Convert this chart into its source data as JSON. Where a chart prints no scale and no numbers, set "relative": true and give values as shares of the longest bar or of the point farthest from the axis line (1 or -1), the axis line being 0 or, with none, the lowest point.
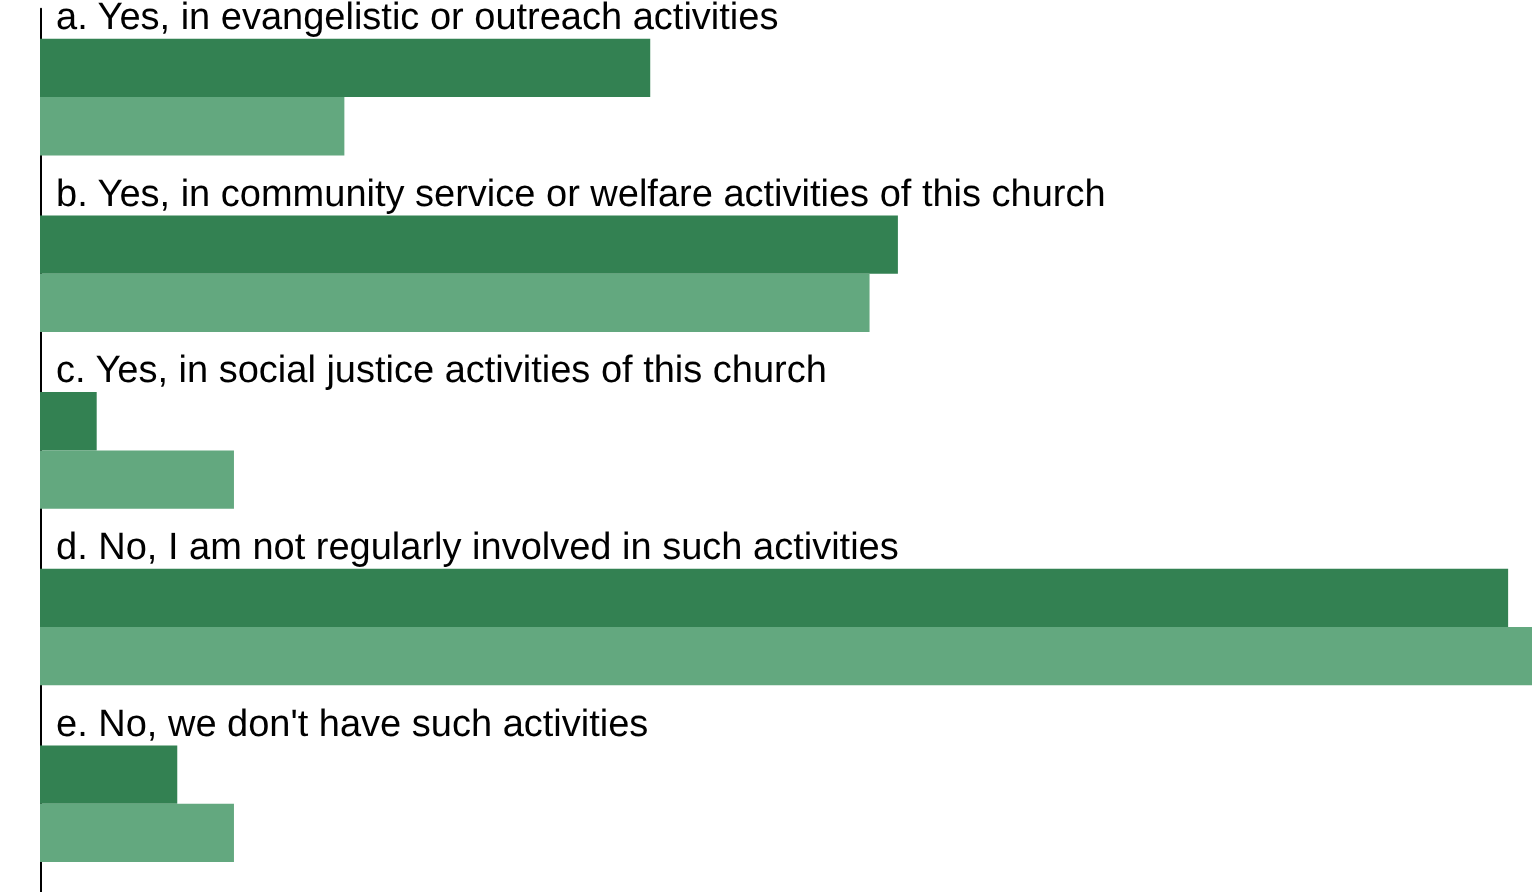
{
  "chart_data": {
    "type": "bar",
    "orientation": "horizontal",
    "relative": true,
    "categories": [
      "a. Yes, in evangelistic or outreach activities",
      "b. Yes, in community service or welfare activities of this church",
      "c. Yes, in social justice activities of this church",
      "d. No, I am not regularly involved in such activities",
      "e. No, we don't have such activities"
    ],
    "series": [
      {
        "color": "#338152",
        "values": [
          0.409,
          0.575,
          0.038,
          0.984,
          0.092
        ]
      },
      {
        "color": "#63a87f",
        "values": [
          0.204,
          0.556,
          0.13,
          1,
          0.13
        ]
      }
    ]
  }
}
